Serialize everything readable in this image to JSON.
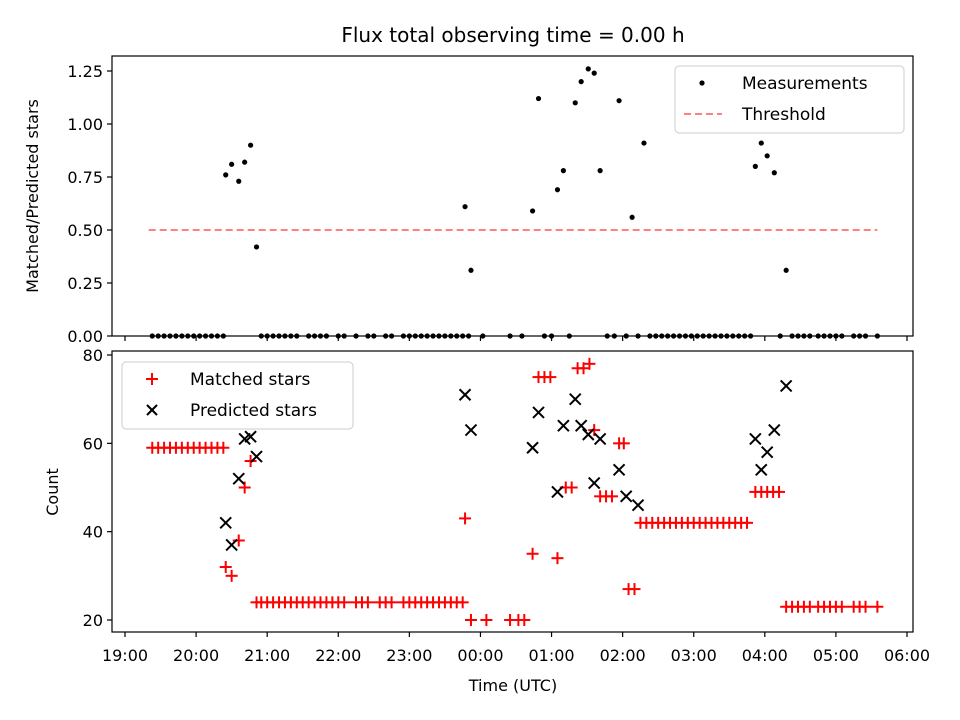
{
  "chart_data": [
    {
      "type": "scatter",
      "title": "Flux total observing time = 0.00 h",
      "xlabel": "",
      "ylabel": "Matched/Predicted stars",
      "ylim": [
        0,
        1.32
      ],
      "xlim": [
        "19:00",
        "06:00"
      ],
      "yticks": [
        "0.00",
        "0.25",
        "0.50",
        "0.75",
        "1.00",
        "1.25"
      ],
      "grid": false,
      "legend_position": "top-right",
      "series": [
        {
          "name": "Measurements",
          "marker": "dot",
          "color": "#000000",
          "points": [
            [
              "19:23",
              0
            ],
            [
              "19:28",
              0
            ],
            [
              "19:33",
              0
            ],
            [
              "19:38",
              0
            ],
            [
              "19:43",
              0
            ],
            [
              "19:48",
              0
            ],
            [
              "19:53",
              0
            ],
            [
              "19:58",
              0
            ],
            [
              "20:03",
              0
            ],
            [
              "20:08",
              0
            ],
            [
              "20:13",
              0
            ],
            [
              "20:18",
              0
            ],
            [
              "20:23",
              0
            ],
            [
              "20:25",
              0.76
            ],
            [
              "20:30",
              0.81
            ],
            [
              "20:36",
              0.73
            ],
            [
              "20:41",
              0.82
            ],
            [
              "20:46",
              0.9
            ],
            [
              "20:51",
              0.42
            ],
            [
              "20:55",
              0
            ],
            [
              "21:00",
              0
            ],
            [
              "21:05",
              0
            ],
            [
              "21:10",
              0
            ],
            [
              "21:15",
              0
            ],
            [
              "21:20",
              0
            ],
            [
              "21:25",
              0
            ],
            [
              "21:35",
              0
            ],
            [
              "21:40",
              0
            ],
            [
              "21:45",
              0
            ],
            [
              "21:50",
              0
            ],
            [
              "22:00",
              0
            ],
            [
              "22:05",
              0
            ],
            [
              "22:15",
              0
            ],
            [
              "22:25",
              0
            ],
            [
              "22:30",
              0
            ],
            [
              "22:40",
              0
            ],
            [
              "22:45",
              0
            ],
            [
              "22:55",
              0
            ],
            [
              "23:00",
              0
            ],
            [
              "23:05",
              0
            ],
            [
              "23:10",
              0
            ],
            [
              "23:15",
              0
            ],
            [
              "23:20",
              0
            ],
            [
              "23:25",
              0
            ],
            [
              "23:30",
              0
            ],
            [
              "23:35",
              0
            ],
            [
              "23:40",
              0
            ],
            [
              "23:45",
              0
            ],
            [
              "23:50",
              0
            ],
            [
              "23:47",
              0.61
            ],
            [
              "23:52",
              0.31
            ],
            [
              "00:02",
              0
            ],
            [
              "00:25",
              0
            ],
            [
              "00:35",
              0
            ],
            [
              "00:44",
              0.59
            ],
            [
              "00:49",
              1.12
            ],
            [
              "00:54",
              0
            ],
            [
              "01:00",
              0
            ],
            [
              "01:05",
              0.69
            ],
            [
              "01:10",
              0.78
            ],
            [
              "01:15",
              0
            ],
            [
              "01:20",
              1.1
            ],
            [
              "01:25",
              1.2
            ],
            [
              "01:31",
              1.26
            ],
            [
              "01:36",
              1.24
            ],
            [
              "01:41",
              0.78
            ],
            [
              "01:47",
              0
            ],
            [
              "01:53",
              0
            ],
            [
              "01:57",
              1.11
            ],
            [
              "02:03",
              0
            ],
            [
              "02:08",
              0.56
            ],
            [
              "02:13",
              0
            ],
            [
              "02:18",
              0.91
            ],
            [
              "02:23",
              0
            ],
            [
              "02:28",
              0
            ],
            [
              "02:33",
              0
            ],
            [
              "02:38",
              0
            ],
            [
              "02:43",
              0
            ],
            [
              "02:48",
              0
            ],
            [
              "02:53",
              0
            ],
            [
              "02:58",
              0
            ],
            [
              "03:03",
              0
            ],
            [
              "03:08",
              0
            ],
            [
              "03:13",
              0
            ],
            [
              "03:18",
              0
            ],
            [
              "03:23",
              0
            ],
            [
              "03:28",
              0
            ],
            [
              "03:33",
              0
            ],
            [
              "03:38",
              0
            ],
            [
              "03:43",
              0
            ],
            [
              "03:48",
              0
            ],
            [
              "03:52",
              0.8
            ],
            [
              "03:57",
              0.91
            ],
            [
              "04:02",
              0.85
            ],
            [
              "04:08",
              0.77
            ],
            [
              "04:13",
              0
            ],
            [
              "04:18",
              0.31
            ],
            [
              "04:23",
              0
            ],
            [
              "04:28",
              0
            ],
            [
              "04:33",
              0
            ],
            [
              "04:38",
              0
            ],
            [
              "04:45",
              0
            ],
            [
              "04:50",
              0
            ],
            [
              "04:55",
              0
            ],
            [
              "05:00",
              0
            ],
            [
              "05:05",
              0
            ],
            [
              "05:15",
              0
            ],
            [
              "05:20",
              0
            ],
            [
              "05:25",
              0
            ],
            [
              "05:35",
              0
            ]
          ]
        },
        {
          "name": "Threshold",
          "style": "dashed",
          "color": "#ff8080",
          "points": [
            [
              "19:20",
              0.5
            ],
            [
              "05:35",
              0.5
            ]
          ]
        }
      ]
    },
    {
      "type": "scatter",
      "title": "",
      "xlabel": "Time (UTC)",
      "ylabel": "Count",
      "ylim": [
        17.5,
        80.5
      ],
      "xlim": [
        "19:00",
        "06:00"
      ],
      "yticks": [
        "20",
        "40",
        "60",
        "80"
      ],
      "xticks": [
        "19:00",
        "20:00",
        "21:00",
        "22:00",
        "23:00",
        "00:00",
        "01:00",
        "02:00",
        "03:00",
        "04:00",
        "05:00",
        "06:00"
      ],
      "grid": false,
      "legend_position": "top-left",
      "series": [
        {
          "name": "Matched stars",
          "marker": "plus",
          "color": "#ff0000",
          "points": [
            [
              "19:23",
              59
            ],
            [
              "19:28",
              59
            ],
            [
              "19:33",
              59
            ],
            [
              "19:38",
              59
            ],
            [
              "19:43",
              59
            ],
            [
              "19:48",
              59
            ],
            [
              "19:53",
              59
            ],
            [
              "19:58",
              59
            ],
            [
              "20:03",
              59
            ],
            [
              "20:08",
              59
            ],
            [
              "20:13",
              59
            ],
            [
              "20:18",
              59
            ],
            [
              "20:23",
              59
            ],
            [
              "20:25",
              32
            ],
            [
              "20:30",
              30
            ],
            [
              "20:36",
              38
            ],
            [
              "20:41",
              50
            ],
            [
              "20:46",
              56
            ],
            [
              "20:51",
              24
            ],
            [
              "20:55",
              24
            ],
            [
              "21:00",
              24
            ],
            [
              "21:05",
              24
            ],
            [
              "21:10",
              24
            ],
            [
              "21:15",
              24
            ],
            [
              "21:20",
              24
            ],
            [
              "21:25",
              24
            ],
            [
              "21:30",
              24
            ],
            [
              "21:35",
              24
            ],
            [
              "21:40",
              24
            ],
            [
              "21:45",
              24
            ],
            [
              "21:50",
              24
            ],
            [
              "21:55",
              24
            ],
            [
              "22:00",
              24
            ],
            [
              "22:05",
              24
            ],
            [
              "22:15",
              24
            ],
            [
              "22:20",
              24
            ],
            [
              "22:25",
              24
            ],
            [
              "22:35",
              24
            ],
            [
              "22:40",
              24
            ],
            [
              "22:45",
              24
            ],
            [
              "22:55",
              24
            ],
            [
              "23:00",
              24
            ],
            [
              "23:05",
              24
            ],
            [
              "23:10",
              24
            ],
            [
              "23:15",
              24
            ],
            [
              "23:20",
              24
            ],
            [
              "23:25",
              24
            ],
            [
              "23:30",
              24
            ],
            [
              "23:35",
              24
            ],
            [
              "23:40",
              24
            ],
            [
              "23:45",
              24
            ],
            [
              "23:47",
              43
            ],
            [
              "23:52",
              20
            ],
            [
              "00:05",
              20
            ],
            [
              "00:25",
              20
            ],
            [
              "00:32",
              20
            ],
            [
              "00:37",
              20
            ],
            [
              "00:44",
              35
            ],
            [
              "00:49",
              75
            ],
            [
              "00:54",
              75
            ],
            [
              "00:59",
              75
            ],
            [
              "01:05",
              34
            ],
            [
              "01:12",
              50
            ],
            [
              "01:17",
              50
            ],
            [
              "01:22",
              77
            ],
            [
              "01:27",
              77
            ],
            [
              "01:32",
              78
            ],
            [
              "01:36",
              63
            ],
            [
              "01:41",
              48
            ],
            [
              "01:46",
              48
            ],
            [
              "01:51",
              48
            ],
            [
              "01:57",
              60
            ],
            [
              "02:01",
              60
            ],
            [
              "02:05",
              27
            ],
            [
              "02:10",
              27
            ],
            [
              "02:15",
              42
            ],
            [
              "02:20",
              42
            ],
            [
              "02:25",
              42
            ],
            [
              "02:30",
              42
            ],
            [
              "02:35",
              42
            ],
            [
              "02:40",
              42
            ],
            [
              "02:45",
              42
            ],
            [
              "02:50",
              42
            ],
            [
              "02:55",
              42
            ],
            [
              "03:00",
              42
            ],
            [
              "03:05",
              42
            ],
            [
              "03:10",
              42
            ],
            [
              "03:15",
              42
            ],
            [
              "03:20",
              42
            ],
            [
              "03:25",
              42
            ],
            [
              "03:30",
              42
            ],
            [
              "03:35",
              42
            ],
            [
              "03:40",
              42
            ],
            [
              "03:45",
              42
            ],
            [
              "03:52",
              49
            ],
            [
              "03:57",
              49
            ],
            [
              "04:02",
              49
            ],
            [
              "04:07",
              49
            ],
            [
              "04:12",
              49
            ],
            [
              "04:18",
              23
            ],
            [
              "04:23",
              23
            ],
            [
              "04:28",
              23
            ],
            [
              "04:33",
              23
            ],
            [
              "04:38",
              23
            ],
            [
              "04:45",
              23
            ],
            [
              "04:50",
              23
            ],
            [
              "04:55",
              23
            ],
            [
              "05:00",
              23
            ],
            [
              "05:05",
              23
            ],
            [
              "05:15",
              23
            ],
            [
              "05:20",
              23
            ],
            [
              "05:25",
              23
            ],
            [
              "05:35",
              23
            ]
          ]
        },
        {
          "name": "Predicted stars",
          "marker": "x",
          "color": "#000000",
          "points": [
            [
              "20:25",
              42
            ],
            [
              "20:30",
              37
            ],
            [
              "20:36",
              52
            ],
            [
              "20:41",
              61
            ],
            [
              "20:46",
              61.5
            ],
            [
              "20:51",
              57
            ],
            [
              "23:47",
              71
            ],
            [
              "23:52",
              63
            ],
            [
              "00:44",
              59
            ],
            [
              "00:49",
              67
            ],
            [
              "01:05",
              49
            ],
            [
              "01:10",
              64
            ],
            [
              "01:20",
              70
            ],
            [
              "01:25",
              64
            ],
            [
              "01:31",
              62
            ],
            [
              "01:36",
              51
            ],
            [
              "01:41",
              61
            ],
            [
              "01:57",
              54
            ],
            [
              "02:03",
              48
            ],
            [
              "02:13",
              46
            ],
            [
              "03:52",
              61
            ],
            [
              "03:57",
              54
            ],
            [
              "04:02",
              58
            ],
            [
              "04:08",
              63
            ],
            [
              "04:18",
              73
            ]
          ]
        }
      ]
    }
  ]
}
